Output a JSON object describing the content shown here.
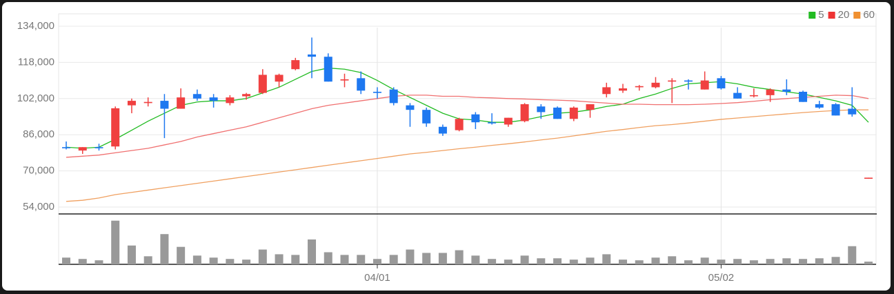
{
  "chart_data": {
    "type": "candlestick",
    "categories": [
      null,
      null,
      null,
      null,
      null,
      null,
      null,
      null,
      null,
      null,
      null,
      null,
      null,
      null,
      null,
      null,
      null,
      null,
      null,
      "04/01",
      null,
      null,
      null,
      null,
      null,
      null,
      null,
      null,
      null,
      null,
      null,
      null,
      null,
      null,
      null,
      null,
      null,
      null,
      null,
      null,
      "05/02",
      null,
      null,
      null,
      null,
      null,
      null,
      null,
      null,
      null
    ],
    "open": [
      80500,
      79000,
      80500,
      80800,
      99000,
      100000,
      101000,
      97500,
      104000,
      102500,
      100000,
      103000,
      104500,
      109500,
      115000,
      121500,
      120500,
      110000,
      111000,
      105000,
      106000,
      99000,
      97000,
      89500,
      88000,
      95000,
      91500,
      90500,
      92000,
      98500,
      98000,
      93000,
      97000,
      104000,
      105500,
      107000,
      107000,
      109500,
      110000,
      106000,
      111000,
      104500,
      103000,
      103500,
      106000,
      105000,
      99500,
      99500,
      97500,
      66500
    ],
    "high": [
      83000,
      80500,
      82000,
      98500,
      102000,
      102500,
      104000,
      106500,
      106000,
      104000,
      103500,
      104500,
      115000,
      113000,
      120000,
      129000,
      122000,
      113000,
      114000,
      107000,
      107000,
      100000,
      98000,
      90500,
      93500,
      96000,
      95500,
      93500,
      100000,
      99500,
      98500,
      98500,
      99500,
      109000,
      108500,
      108000,
      111500,
      111000,
      110500,
      114000,
      112000,
      107000,
      106500,
      106500,
      110500,
      105500,
      101000,
      100000,
      107000,
      67000
    ],
    "low": [
      79500,
      77500,
      79000,
      79500,
      95500,
      98500,
      84500,
      97500,
      101000,
      98000,
      99000,
      101500,
      104000,
      107000,
      114500,
      111000,
      109500,
      107000,
      104000,
      102000,
      99000,
      89500,
      89500,
      85500,
      87500,
      88500,
      90500,
      89500,
      91500,
      93000,
      93000,
      92000,
      93500,
      102500,
      104500,
      105500,
      106500,
      100000,
      106000,
      106000,
      106000,
      102000,
      102500,
      100500,
      103500,
      100500,
      97500,
      94500,
      94000,
      66500
    ],
    "close": [
      80000,
      80500,
      80000,
      97700,
      101000,
      100500,
      97500,
      102500,
      102000,
      101000,
      102500,
      104000,
      112500,
      112500,
      119000,
      120500,
      109500,
      110500,
      105500,
      104500,
      100000,
      97000,
      91000,
      86500,
      93000,
      91500,
      91000,
      93500,
      99500,
      96000,
      93000,
      98000,
      99500,
      107000,
      106500,
      107500,
      109000,
      110000,
      109500,
      110000,
      106500,
      102000,
      103500,
      106000,
      105000,
      100500,
      98000,
      94500,
      95000,
      67000
    ],
    "up_color": "#f04040",
    "down_color": "#1e78f0",
    "ma_series": [
      {
        "name": "5",
        "color": "#22bb22",
        "values": [
          80500,
          80000,
          80500,
          84000,
          88000,
          92000,
          95500,
          99000,
          100500,
          101000,
          101000,
          102000,
          104500,
          107000,
          110500,
          114000,
          115500,
          115000,
          113500,
          110000,
          106000,
          102500,
          99000,
          95500,
          93000,
          92500,
          91500,
          91500,
          92500,
          94000,
          95500,
          96000,
          97000,
          98500,
          99500,
          102000,
          104000,
          106500,
          108500,
          109000,
          109500,
          108500,
          107000,
          106000,
          105000,
          104000,
          102500,
          101000,
          99000,
          91500
        ]
      },
      {
        "name": "20",
        "color": "#f07070",
        "values": [
          76000,
          76500,
          77000,
          78000,
          79000,
          80000,
          81500,
          83000,
          85000,
          86500,
          88000,
          89500,
          91500,
          93500,
          95500,
          97500,
          99000,
          100000,
          101000,
          102000,
          103000,
          103500,
          103500,
          103000,
          103000,
          102500,
          102300,
          102000,
          101800,
          101500,
          101300,
          101000,
          100500,
          100000,
          99500,
          99500,
          99300,
          99300,
          99300,
          99500,
          99800,
          100200,
          100800,
          101500,
          102000,
          102500,
          103000,
          103500,
          103300,
          102000
        ]
      },
      {
        "name": "60",
        "color": "#f0a060",
        "values": [
          56500,
          57000,
          58000,
          59500,
          60500,
          61500,
          62500,
          63500,
          64500,
          65500,
          66500,
          67500,
          68500,
          69500,
          70500,
          71500,
          72500,
          73500,
          74500,
          75500,
          76500,
          77500,
          78200,
          79000,
          79800,
          80500,
          81300,
          82000,
          82800,
          83700,
          84500,
          85500,
          86500,
          87500,
          88300,
          89200,
          90000,
          90500,
          91200,
          92000,
          92800,
          93400,
          94000,
          94600,
          95200,
          95800,
          96300,
          96700,
          97000,
          97000
        ]
      }
    ],
    "legend_colors": {
      "5": "#22bb22",
      "20": "#ee3333",
      "60": "#f09030"
    },
    "volume": [
      10,
      8,
      6,
      65,
      28,
      12,
      45,
      26,
      13,
      10,
      8,
      7,
      22,
      15,
      14,
      37,
      18,
      14,
      14,
      8,
      14,
      22,
      17,
      17,
      21,
      13,
      8,
      7,
      13,
      9,
      9,
      7,
      10,
      15,
      7,
      6,
      10,
      12,
      6,
      10,
      7,
      8,
      6,
      8,
      9,
      8,
      9,
      11,
      27,
      4
    ],
    "volume_color": "#999999",
    "volume_ylim": [
      0,
      75
    ],
    "ylim": [
      54000,
      134000
    ],
    "yticks": [
      {
        "value": 54000,
        "label": "54,000"
      },
      {
        "value": 70000,
        "label": "70,000"
      },
      {
        "value": 86000,
        "label": "86,000"
      },
      {
        "value": 102000,
        "label": "102,000"
      },
      {
        "value": 118000,
        "label": "118,000"
      },
      {
        "value": 134000,
        "label": "134,000"
      }
    ],
    "grid": true
  }
}
